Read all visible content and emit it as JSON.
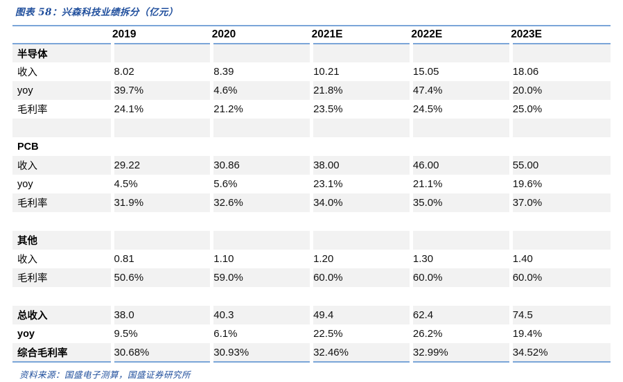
{
  "title": "图表 58：兴森科技业绩拆分（亿元）",
  "footer": "资料来源：国盛电子测算，国盛证券研究所",
  "colors": {
    "accent_blue": "#1F4E9C",
    "border_blue": "#7AA5D8",
    "stripe_gray": "#F2F2F2",
    "text": "#000000"
  },
  "table": {
    "columns": [
      "",
      "2019",
      "2020",
      "2021E",
      "2022E",
      "2023E"
    ],
    "rows": [
      {
        "label": "半导体",
        "bold": true,
        "shaded": true,
        "values": [
          "",
          "",
          "",
          "",
          ""
        ]
      },
      {
        "label": "收入",
        "bold": false,
        "shaded": false,
        "values": [
          "8.02",
          "8.39",
          "10.21",
          "15.05",
          "18.06"
        ]
      },
      {
        "label": "yoy",
        "bold": false,
        "shaded": true,
        "values": [
          "39.7%",
          "4.6%",
          "21.8%",
          "47.4%",
          "20.0%"
        ]
      },
      {
        "label": "毛利率",
        "bold": false,
        "shaded": false,
        "values": [
          "24.1%",
          "21.2%",
          "23.5%",
          "24.5%",
          "25.0%"
        ]
      },
      {
        "label": "",
        "bold": false,
        "shaded": true,
        "values": [
          "",
          "",
          "",
          "",
          ""
        ]
      },
      {
        "label": "PCB",
        "bold": true,
        "shaded": false,
        "values": [
          "",
          "",
          "",
          "",
          ""
        ]
      },
      {
        "label": "收入",
        "bold": false,
        "shaded": true,
        "values": [
          "29.22",
          "30.86",
          "38.00",
          "46.00",
          "55.00"
        ]
      },
      {
        "label": "yoy",
        "bold": false,
        "shaded": false,
        "values": [
          "4.5%",
          "5.6%",
          "23.1%",
          "21.1%",
          "19.6%"
        ]
      },
      {
        "label": "毛利率",
        "bold": false,
        "shaded": true,
        "values": [
          "31.9%",
          "32.6%",
          "34.0%",
          "35.0%",
          "37.0%"
        ]
      },
      {
        "label": "",
        "bold": false,
        "shaded": false,
        "values": [
          "",
          "",
          "",
          "",
          ""
        ]
      },
      {
        "label": "其他",
        "bold": true,
        "shaded": true,
        "values": [
          "",
          "",
          "",
          "",
          ""
        ]
      },
      {
        "label": "收入",
        "bold": false,
        "shaded": false,
        "values": [
          "0.81",
          "1.10",
          "1.20",
          "1.30",
          "1.40"
        ]
      },
      {
        "label": "毛利率",
        "bold": false,
        "shaded": true,
        "values": [
          "50.6%",
          "59.0%",
          "60.0%",
          "60.0%",
          "60.0%"
        ]
      },
      {
        "label": "",
        "bold": false,
        "shaded": false,
        "values": [
          "",
          "",
          "",
          "",
          ""
        ]
      },
      {
        "label": "总收入",
        "bold": true,
        "shaded": true,
        "values": [
          "38.0",
          "40.3",
          "49.4",
          "62.4",
          "74.5"
        ]
      },
      {
        "label": "yoy",
        "bold": true,
        "shaded": false,
        "values": [
          "9.5%",
          "6.1%",
          "22.5%",
          "26.2%",
          "19.4%"
        ]
      },
      {
        "label": "综合毛利率",
        "bold": true,
        "shaded": true,
        "values": [
          "30.68%",
          "30.93%",
          "32.46%",
          "32.99%",
          "34.52%"
        ]
      }
    ]
  }
}
